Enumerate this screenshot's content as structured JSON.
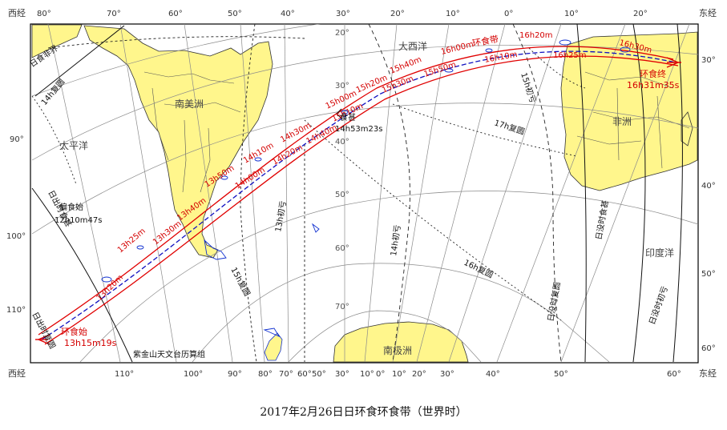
{
  "caption": "2017年2月26日日环食环食带（世界时）",
  "corners": {
    "top_left": "西经",
    "top_right": "东经",
    "bottom_left": "西经",
    "bottom_right": "东经"
  },
  "top_longitudes": [
    "80°",
    "70°",
    "60°",
    "50°",
    "40°",
    "30°",
    "20°",
    "10°",
    "0°",
    "10°",
    "20°"
  ],
  "bottom_longitudes": [
    "110°",
    "100°",
    "90°",
    "80°",
    "70°",
    "60°",
    "50°",
    "30°",
    "10°",
    "0°",
    "10°",
    "20°",
    "30°",
    "40°",
    "50°",
    "60°"
  ],
  "left_latitudes": [
    "90°",
    "100°",
    "110°"
  ],
  "right_latitudes": [
    "30°",
    "40°",
    "50°",
    "60°"
  ],
  "parallel_labels": [
    "20°",
    "30°",
    "40°",
    "50°",
    "60°",
    "70°"
  ],
  "regions": {
    "south_america": "南美洲",
    "pacific": "太平洋",
    "atlantic": "大西洋",
    "africa": "非洲",
    "indian_ocean": "印度洋",
    "antarctica": "南极洲"
  },
  "date_line_label": "日食非界",
  "annular_band_label": "环食带",
  "path_times": [
    "13h20m",
    "13h25m",
    "13h30m",
    "13h40m",
    "13h50m",
    "14h00m",
    "14h10m",
    "14h20m",
    "14h30m",
    "14h40m",
    "15h00m",
    "15h10m",
    "15h20m",
    "15h30m",
    "15h40m",
    "15h50m",
    "16h00m",
    "16h10m",
    "16h20m",
    "16h25m",
    "16h30m"
  ],
  "annular_start": {
    "label": "环食始",
    "time": "13h15m19s"
  },
  "annular_end": {
    "label": "环食终",
    "time": "16h31m35s"
  },
  "greatest": {
    "label": "食甚",
    "time": "14h53m23s"
  },
  "partial_start": {
    "label": "偏食始",
    "time": "12h10m47s"
  },
  "contact_lines": {
    "west_outer": "日出时食甚",
    "west_inner": "日出时复圆",
    "east_outer": "日没时复圆",
    "east_mid": "日没时食甚",
    "east_inner": "日没时初亏"
  },
  "partial_isochrones": [
    "14h复圆",
    "17h复圆",
    "13h初亏",
    "14h初亏",
    "15h初亏",
    "16h复圆",
    "15h复圆"
  ],
  "credit": "紫金山天文台历算组",
  "colors": {
    "land": "#fff68c",
    "ocean": "#ffffff",
    "annular_path": "#e00000",
    "central_line": "#1010c0",
    "grid": "#8a8a8a"
  }
}
